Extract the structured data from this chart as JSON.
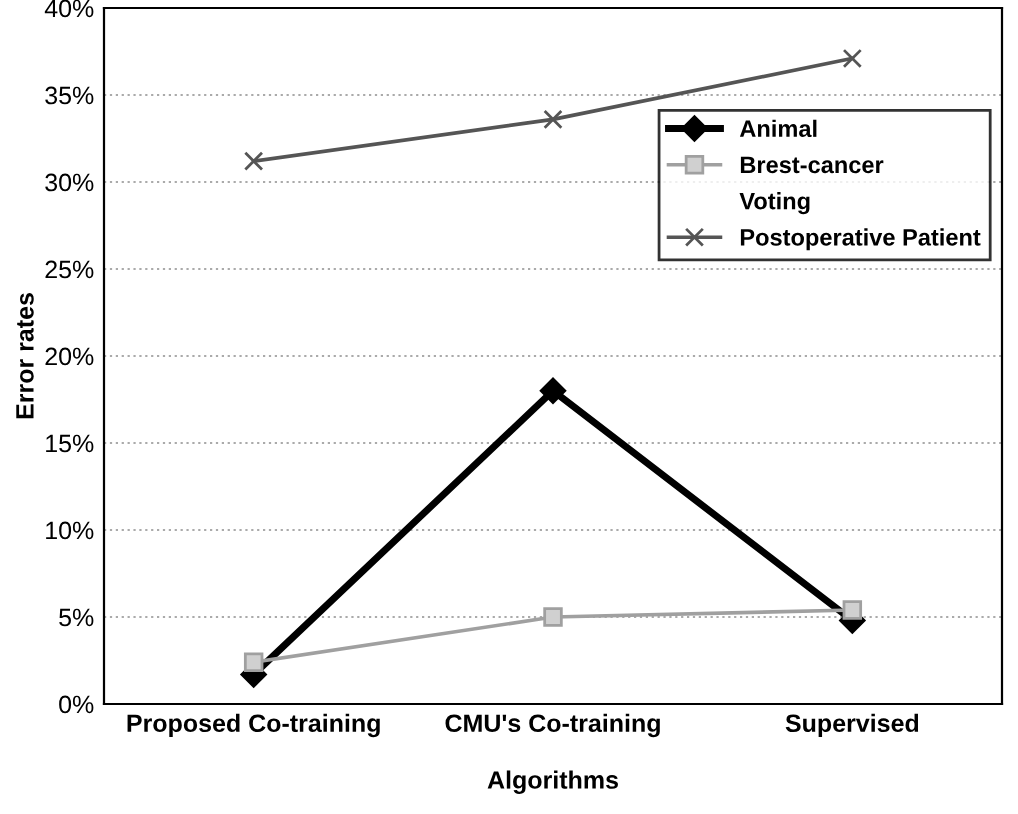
{
  "chart_data": {
    "type": "line",
    "xlabel": "Algorithms",
    "ylabel": "Error rates",
    "categories": [
      "Proposed Co-training",
      "CMU's Co-training",
      "Supervised"
    ],
    "series": [
      {
        "name": "Animal",
        "color": "#000000",
        "values": [
          1.7,
          18.0,
          4.8
        ],
        "marker": "diamond"
      },
      {
        "name": "Brest-cancer",
        "color": "#a0a0a0",
        "values": [
          2.4,
          5.0,
          5.4
        ],
        "marker": "square"
      },
      {
        "name": "Voting",
        "values": [
          null,
          null,
          null
        ],
        "marker": "none"
      },
      {
        "name": "Postoperative Patient",
        "color": "#555555",
        "values": [
          31.2,
          33.6,
          37.1
        ],
        "marker": "cross"
      }
    ],
    "ylim": [
      0,
      40
    ],
    "yticks": [
      {
        "value": 0,
        "label": "0%"
      },
      {
        "value": 5,
        "label": "5%"
      },
      {
        "value": 10,
        "label": "10%"
      },
      {
        "value": 15,
        "label": "15%"
      },
      {
        "value": 20,
        "label": "20%"
      },
      {
        "value": 25,
        "label": "25%"
      },
      {
        "value": 30,
        "label": "30%"
      },
      {
        "value": 35,
        "label": "35%"
      },
      {
        "value": 40,
        "label": "40%"
      }
    ],
    "grid": "y",
    "legend": "top right"
  }
}
